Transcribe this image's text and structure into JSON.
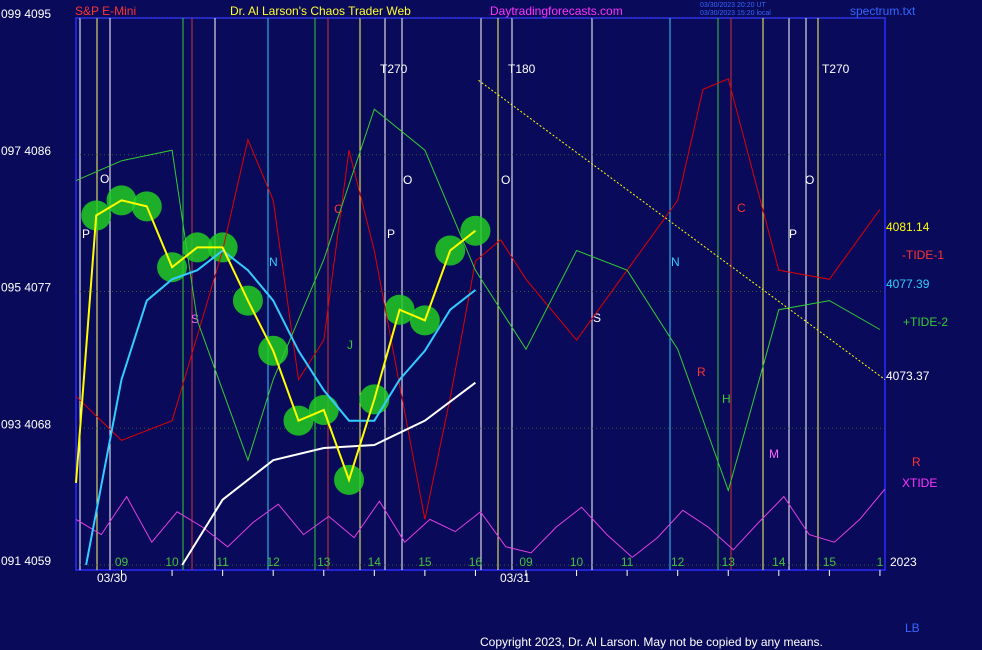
{
  "chart_data": {
    "type": "line",
    "title": "Dr. Al Larson's Chaos Trader Web",
    "instrument": "S&P E-Mini",
    "site": "Daytradingforecasts.com",
    "file": "spectrum.txt",
    "timestamp_lines": [
      "03/30/2023 20:20 UT",
      "03/30/2023 15:20 local"
    ],
    "copyright": "Copyright 2023, Dr. Al Larson. May not be copied by any means.",
    "xlim": [
      -0.9,
      15.1
    ],
    "ylim": [
      4059,
      4095
    ],
    "yticks": [
      {
        "value": 4095,
        "label": "099 4095"
      },
      {
        "value": 4086,
        "label": "097 4086"
      },
      {
        "value": 4077,
        "label": "095 4077"
      },
      {
        "value": 4068,
        "label": "093 4068"
      },
      {
        "value": 4059,
        "label": "091 4059"
      }
    ],
    "xticks": [
      {
        "value": 0,
        "label": "09"
      },
      {
        "value": 1,
        "label": "10"
      },
      {
        "value": 2,
        "label": "11"
      },
      {
        "value": 3,
        "label": "12"
      },
      {
        "value": 4,
        "label": "13"
      },
      {
        "value": 5,
        "label": "14"
      },
      {
        "value": 6,
        "label": "15"
      },
      {
        "value": 7,
        "label": "16"
      },
      {
        "value": 8,
        "label": "09"
      },
      {
        "value": 9,
        "label": "10"
      },
      {
        "value": 10,
        "label": "11"
      },
      {
        "value": 11,
        "label": "12"
      },
      {
        "value": 12,
        "label": "13"
      },
      {
        "value": 13,
        "label": "14"
      },
      {
        "value": 14,
        "label": "15"
      },
      {
        "value": 15,
        "label": "1"
      }
    ],
    "grid": true,
    "series": [
      {
        "name": "XTIDE",
        "color": "#e040e0",
        "x": [
          -0.9,
          -0.4,
          0.1,
          0.6,
          1.1,
          1.6,
          2.1,
          2.6,
          3.1,
          3.6,
          4.1,
          4.6,
          5.1,
          5.6,
          6.1,
          6.6,
          7.1,
          7.6,
          8.1,
          8.6,
          9.1,
          9.6,
          10.1,
          10.6,
          11.1,
          11.6,
          12.1,
          12.6,
          13.1,
          13.6,
          14.1,
          14.6,
          15.1
        ],
        "values": [
          4062,
          4061,
          4063.5,
          4060.5,
          4062.5,
          4061.5,
          4060.2,
          4061.8,
          4063,
          4061,
          4062.2,
          4060.8,
          4063.2,
          4060.5,
          4062,
          4061.2,
          4062.5,
          4060.2,
          4059.8,
          4061.5,
          4062.8,
          4061,
          4059.5,
          4060.8,
          4062.6,
          4061.5,
          4060,
          4061.8,
          4063.5,
          4061,
          4060.5,
          4062,
          4064
        ]
      },
      {
        "name": "-TIDE-1",
        "color": "#e00000",
        "x": [
          -0.9,
          0,
          1,
          2,
          2.5,
          3,
          3.5,
          4,
          4.5,
          5,
          6,
          6.5,
          7,
          7.5,
          8,
          9,
          10,
          11,
          11.5,
          12,
          13,
          14,
          15
        ],
        "values": [
          4070.1,
          4067.2,
          4068.5,
          4079.7,
          4087,
          4083,
          4071.2,
          4073.8,
          4086.3,
          4079.7,
          4062,
          4070,
          4079,
          4080.4,
          4077.8,
          4073.8,
          4078.4,
          4083,
          4090.3,
          4091,
          4078.4,
          4077.8,
          4082.4
        ]
      },
      {
        "name": "+TIDE-2",
        "color": "#33cc33",
        "x": [
          -0.9,
          0,
          1,
          1.5,
          2.5,
          3,
          4,
          5,
          6,
          7,
          8,
          9,
          10,
          11,
          12,
          13,
          14,
          15
        ],
        "values": [
          4084.3,
          4085.6,
          4086.3,
          4075.1,
          4065.9,
          4071.2,
          4079.1,
          4089,
          4086.3,
          4078.4,
          4073.2,
          4079.7,
          4078.4,
          4073.2,
          4063.9,
          4075.8,
          4076.4,
          4074.5
        ]
      },
      {
        "name": "4073.37",
        "color": "#ffffff",
        "x": [
          1.2,
          2,
          3,
          4,
          5,
          6,
          7
        ],
        "values": [
          4059,
          4063.3,
          4065.9,
          4066.7,
          4066.9,
          4068.5,
          4071
        ]
      },
      {
        "name": "4077.39",
        "color": "#33ccff",
        "x": [
          -0.7,
          0,
          0.5,
          1,
          1.5,
          2,
          2.5,
          3,
          3.5,
          4,
          4.5,
          5,
          5.5,
          6,
          6.5,
          7
        ],
        "values": [
          4059,
          4071.2,
          4076.4,
          4077.8,
          4078.4,
          4079.7,
          4078.4,
          4076.4,
          4073.1,
          4070.5,
          4068.5,
          4068.5,
          4071.2,
          4073.1,
          4075.8,
          4077.1
        ]
      },
      {
        "name": "4081.14",
        "color": "#ffff00",
        "x": [
          -0.9,
          -0.5,
          0,
          0.5,
          1,
          1.5,
          2,
          2.5,
          3,
          3.5,
          4,
          4.5,
          5,
          5.5,
          6,
          6.5,
          7
        ],
        "values": [
          4064.4,
          4082,
          4083,
          4082.6,
          4078.6,
          4079.9,
          4079.9,
          4076.4,
          4073.1,
          4068.5,
          4069.2,
          4064.6,
          4069.9,
          4075.8,
          4075.1,
          4079.7,
          4081
        ]
      }
    ],
    "trend_line": {
      "color": "#ffff00",
      "x": [
        7.06,
        15.1
      ],
      "values": [
        4090.9,
        4071.2
      ]
    },
    "annotations": [
      "T270",
      "T180",
      "T270",
      "O",
      "P",
      "S",
      "N",
      "C",
      "J",
      "P",
      "O",
      "O",
      "S",
      "N",
      "R",
      "H",
      "M",
      "C",
      "P",
      "O",
      "-TIDE-1",
      "+TIDE-2",
      "R",
      "XTIDE",
      "2023",
      "LB",
      "03/30",
      "03/31"
    ]
  }
}
